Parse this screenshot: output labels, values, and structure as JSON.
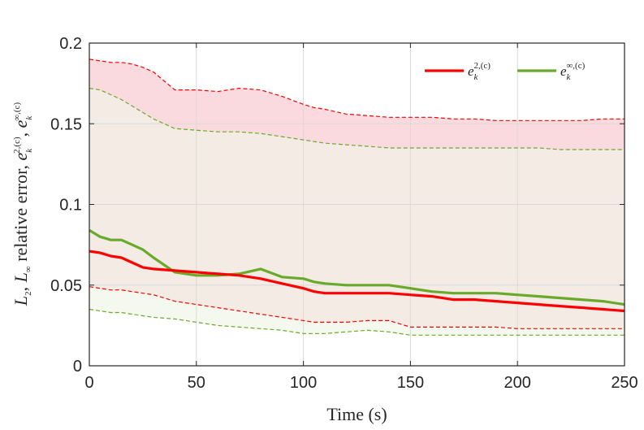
{
  "chart_data": {
    "type": "line",
    "xlabel": "Time (s)",
    "ylabel": "L₂, L∞ relative error, eₖ^{2,(c)}, eₖ^{∞,(c)}",
    "xlim": [
      0,
      250
    ],
    "ylim": [
      0,
      0.2
    ],
    "xticks": [
      "0",
      "50",
      "100",
      "150",
      "200",
      "250"
    ],
    "yticks": [
      "0",
      "0.05",
      "0.1",
      "0.15",
      "0.2"
    ],
    "grid": true,
    "legend_position": "top-right",
    "series": [
      {
        "name": "e_k^{2,(c)}",
        "color": "#ff0000",
        "band_color": "#f9d3d8",
        "x": [
          0,
          5,
          10,
          15,
          20,
          25,
          30,
          40,
          50,
          60,
          70,
          80,
          90,
          100,
          105,
          110,
          120,
          130,
          140,
          150,
          160,
          170,
          180,
          190,
          200,
          210,
          220,
          230,
          240,
          250
        ],
        "mean": [
          0.071,
          0.07,
          0.068,
          0.067,
          0.064,
          0.061,
          0.06,
          0.059,
          0.058,
          0.057,
          0.056,
          0.054,
          0.051,
          0.048,
          0.046,
          0.045,
          0.045,
          0.045,
          0.045,
          0.044,
          0.043,
          0.041,
          0.041,
          0.04,
          0.039,
          0.038,
          0.037,
          0.036,
          0.035,
          0.034
        ],
        "upper": [
          0.19,
          0.189,
          0.188,
          0.188,
          0.187,
          0.185,
          0.182,
          0.171,
          0.171,
          0.17,
          0.172,
          0.171,
          0.167,
          0.162,
          0.16,
          0.159,
          0.156,
          0.155,
          0.154,
          0.154,
          0.154,
          0.153,
          0.153,
          0.152,
          0.152,
          0.152,
          0.152,
          0.152,
          0.153,
          0.153
        ],
        "lower": [
          0.049,
          0.048,
          0.047,
          0.047,
          0.046,
          0.045,
          0.044,
          0.04,
          0.038,
          0.036,
          0.034,
          0.032,
          0.03,
          0.028,
          0.027,
          0.027,
          0.027,
          0.028,
          0.028,
          0.024,
          0.024,
          0.024,
          0.024,
          0.024,
          0.023,
          0.023,
          0.023,
          0.023,
          0.023,
          0.023
        ]
      },
      {
        "name": "e_k^{∞,(c)}",
        "color": "#6aaa2a",
        "band_color": "#f0f5e6",
        "x": [
          0,
          5,
          10,
          15,
          20,
          25,
          30,
          40,
          50,
          60,
          70,
          80,
          90,
          100,
          105,
          110,
          120,
          130,
          140,
          150,
          160,
          170,
          180,
          190,
          200,
          210,
          220,
          230,
          240,
          250
        ],
        "mean": [
          0.084,
          0.08,
          0.078,
          0.078,
          0.075,
          0.072,
          0.067,
          0.058,
          0.056,
          0.056,
          0.057,
          0.06,
          0.055,
          0.054,
          0.052,
          0.051,
          0.05,
          0.05,
          0.05,
          0.048,
          0.046,
          0.045,
          0.045,
          0.045,
          0.044,
          0.043,
          0.042,
          0.041,
          0.04,
          0.038
        ],
        "upper": [
          0.172,
          0.171,
          0.168,
          0.165,
          0.161,
          0.157,
          0.153,
          0.147,
          0.146,
          0.145,
          0.145,
          0.144,
          0.142,
          0.14,
          0.139,
          0.138,
          0.137,
          0.136,
          0.135,
          0.135,
          0.135,
          0.135,
          0.135,
          0.135,
          0.135,
          0.135,
          0.134,
          0.134,
          0.134,
          0.134
        ],
        "lower": [
          0.035,
          0.034,
          0.033,
          0.033,
          0.032,
          0.031,
          0.03,
          0.029,
          0.027,
          0.025,
          0.024,
          0.023,
          0.022,
          0.02,
          0.02,
          0.02,
          0.021,
          0.022,
          0.021,
          0.019,
          0.019,
          0.019,
          0.019,
          0.019,
          0.019,
          0.019,
          0.019,
          0.019,
          0.019,
          0.019
        ]
      }
    ],
    "legend": [
      {
        "base": "e",
        "sub": "k",
        "sup": "2,(c)"
      },
      {
        "base": "e",
        "sub": "k",
        "sup": "∞,(c)"
      }
    ]
  }
}
